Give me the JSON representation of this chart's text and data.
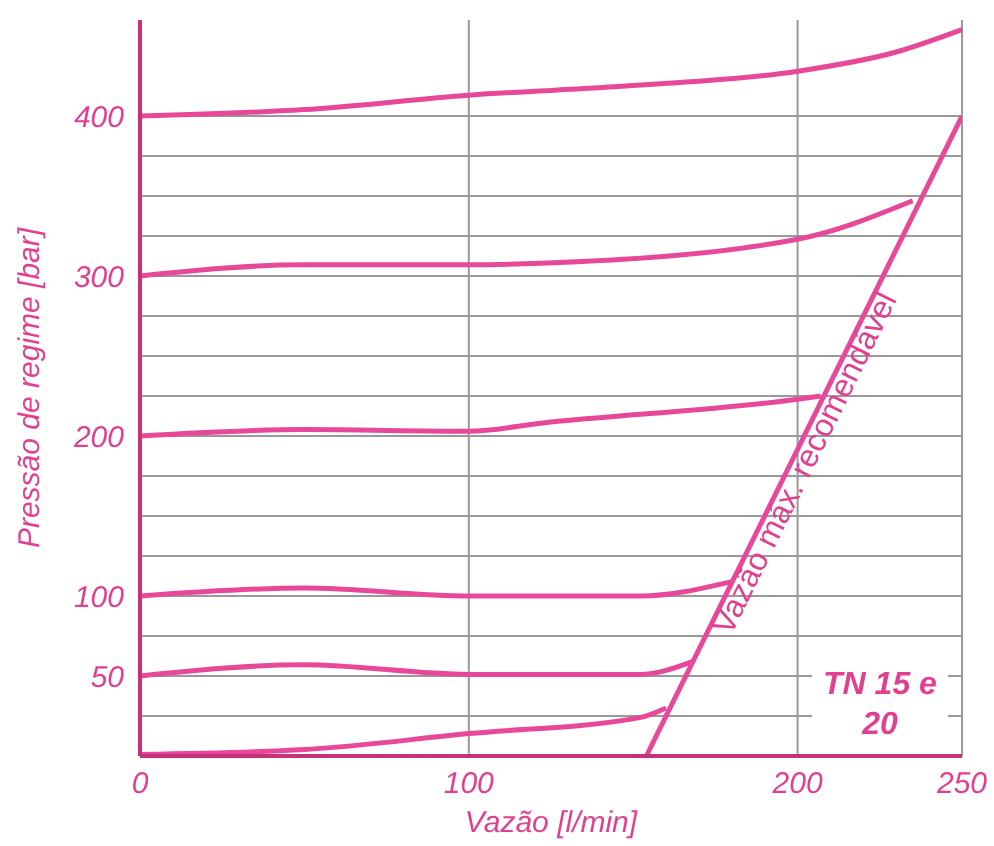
{
  "chart_data": {
    "type": "line",
    "xlabel": "Vazão [l/min]",
    "ylabel": "Pressão de regime [bar]",
    "xlim": [
      0,
      250
    ],
    "xticks": [
      0,
      100,
      200,
      250
    ],
    "ylim": [
      0,
      460
    ],
    "yticks": [
      {
        "value": 0,
        "label": null
      },
      {
        "value": 25,
        "label": null
      },
      50,
      {
        "value": 75,
        "label": null
      },
      100,
      {
        "value": 125,
        "label": null
      },
      {
        "value": 150,
        "label": null
      },
      {
        "value": 175,
        "label": null
      },
      200,
      {
        "value": 225,
        "label": null
      },
      {
        "value": 250,
        "label": null
      },
      {
        "value": 275,
        "label": null
      },
      300,
      {
        "value": 325,
        "label": null
      },
      {
        "value": 350,
        "label": null
      },
      {
        "value": 375,
        "label": null
      },
      400
    ],
    "grid": true,
    "legend": false,
    "marker": "none",
    "line_style": "solid",
    "series": [
      {
        "color": "#e8489a",
        "x": [
          0,
          50,
          100,
          150,
          200,
          230,
          250
        ],
        "values": [
          400,
          404,
          413,
          419,
          428,
          440,
          454
        ]
      },
      {
        "color": "#e8489a",
        "x": [
          0,
          50,
          100,
          122,
          200,
          235
        ],
        "values": [
          300,
          307,
          307,
          308,
          323,
          347
        ]
      },
      {
        "color": "#e8489a",
        "x": [
          0,
          50,
          100,
          122,
          200,
          207
        ],
        "values": [
          200,
          204,
          203,
          208,
          223,
          225
        ]
      },
      {
        "color": "#e8489a",
        "x": [
          0,
          50,
          100,
          152,
          180
        ],
        "values": [
          100,
          105,
          100,
          100,
          109
        ]
      },
      {
        "color": "#e8489a",
        "x": [
          0,
          50,
          100,
          152,
          168
        ],
        "values": [
          50,
          57,
          51,
          51,
          59
        ]
      },
      {
        "color": "#e8489a",
        "x": [
          0,
          50,
          100,
          152,
          160
        ],
        "values": [
          1,
          4,
          14,
          24,
          30
        ]
      },
      {
        "color": "#e8489a",
        "x": [
          154,
          250
        ],
        "values": [
          0,
          400
        ]
      }
    ],
    "annotations": [
      "Vazão máx. recomendável",
      "TN 15 e 20"
    ]
  }
}
